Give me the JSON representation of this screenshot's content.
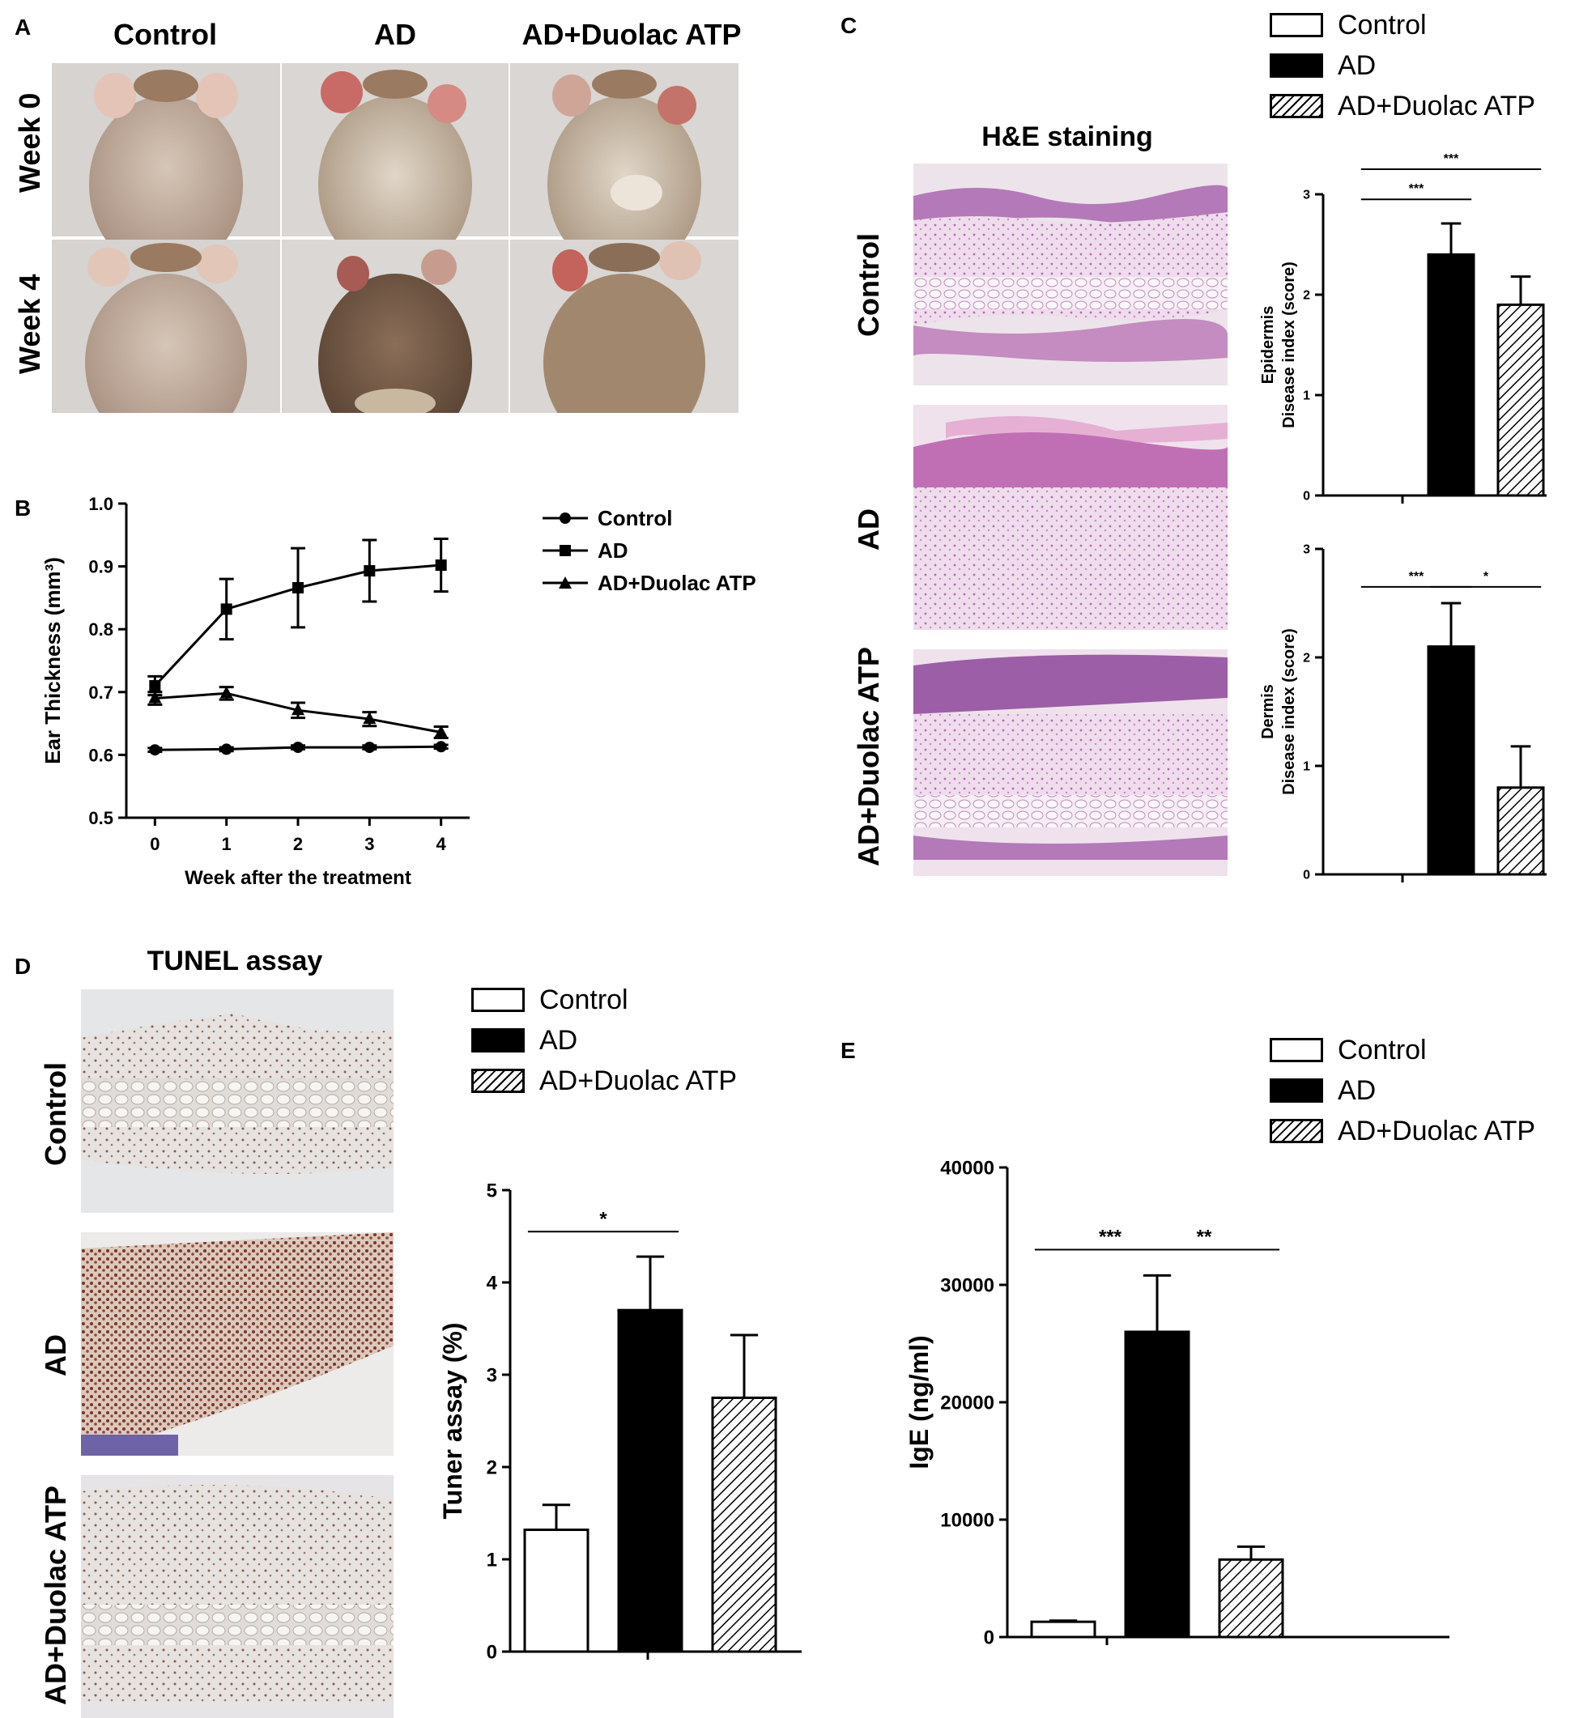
{
  "panels": {
    "A": {
      "label": "A",
      "columns": [
        "Control",
        "AD",
        "AD+Duolac ATP"
      ],
      "rows": [
        "Week 0",
        "Week 4"
      ]
    },
    "B": {
      "label": "B",
      "legend": [
        "Control",
        "AD",
        "AD+Duolac ATP"
      ]
    },
    "C": {
      "label": "C",
      "title": "H&E staining",
      "rows": [
        "Control",
        "AD",
        "AD+Duolac ATP"
      ],
      "legend": [
        "Control",
        "AD",
        "AD+Duolac ATP"
      ]
    },
    "D": {
      "label": "D",
      "title": "TUNEL assay",
      "rows": [
        "Control",
        "AD",
        "AD+Duolac ATP"
      ],
      "legend": [
        "Control",
        "AD",
        "AD+Duolac ATP"
      ]
    },
    "E": {
      "label": "E",
      "legend": [
        "Control",
        "AD",
        "AD+Duolac ATP"
      ]
    }
  },
  "chart_data": [
    {
      "id": "B",
      "type": "line",
      "xlabel": "Week after the treatment",
      "ylabel": "Ear Thickness (mm³)",
      "x": [
        0,
        1,
        2,
        3,
        4
      ],
      "xlim": [
        -0.4,
        4.4
      ],
      "ylim": [
        0.5,
        1.0
      ],
      "yticks": [
        "0.5",
        "0.6",
        "0.7",
        "0.8",
        "0.9",
        "1.0"
      ],
      "xticks": [
        "0",
        "1",
        "2",
        "3",
        "4"
      ],
      "series": [
        {
          "name": "Control",
          "marker": "circle",
          "values": [
            0.608,
            0.609,
            0.612,
            0.612,
            0.613
          ],
          "err": [
            0.003,
            0.003,
            0.003,
            0.003,
            0.003
          ]
        },
        {
          "name": "AD",
          "marker": "square",
          "values": [
            0.71,
            0.832,
            0.866,
            0.893,
            0.902
          ],
          "err": [
            0.015,
            0.048,
            0.063,
            0.049,
            0.042
          ]
        },
        {
          "name": "AD+Duolac ATP",
          "marker": "triangle",
          "values": [
            0.69,
            0.698,
            0.671,
            0.657,
            0.636
          ],
          "err": [
            0.01,
            0.01,
            0.012,
            0.011,
            0.009
          ]
        }
      ]
    },
    {
      "id": "C1",
      "type": "bar",
      "ylabel_lines": [
        "Epidermis",
        "Disease index (score)"
      ],
      "categories": [
        "Control",
        "AD",
        "AD+Duolac ATP"
      ],
      "values": [
        0,
        2.4,
        1.9
      ],
      "err": [
        0,
        0.31,
        0.28
      ],
      "ylim": [
        0,
        3
      ],
      "yticks": [
        "0",
        "1",
        "2",
        "3"
      ],
      "significance": [
        {
          "from": 0,
          "to": 1,
          "label": "***",
          "level": 2.95
        },
        {
          "from": 0,
          "to": 2,
          "label": "***",
          "level": 3.25
        }
      ]
    },
    {
      "id": "C2",
      "type": "bar",
      "ylabel_lines": [
        "Dermis",
        "Disease index (score)"
      ],
      "categories": [
        "Control",
        "AD",
        "AD+Duolac ATP"
      ],
      "values": [
        0,
        2.1,
        0.8
      ],
      "err": [
        0,
        0.4,
        0.38
      ],
      "ylim": [
        0,
        3
      ],
      "yticks": [
        "0",
        "1",
        "2",
        "3"
      ],
      "significance": [
        {
          "from": 0,
          "to": 1,
          "label": "***",
          "level": 2.65
        },
        {
          "from": 1,
          "to": 2,
          "label": "*",
          "level": 2.65
        }
      ]
    },
    {
      "id": "D",
      "type": "bar",
      "ylabel": "Tuner assay (%)",
      "categories": [
        "Control",
        "AD",
        "AD+Duolac ATP"
      ],
      "values": [
        1.32,
        3.7,
        2.75
      ],
      "err": [
        0.27,
        0.58,
        0.68
      ],
      "ylim": [
        0,
        5
      ],
      "yticks": [
        "0",
        "1",
        "2",
        "3",
        "4",
        "5"
      ],
      "significance": [
        {
          "from": 0,
          "to": 1,
          "label": "*",
          "level": 4.55
        }
      ]
    },
    {
      "id": "E",
      "type": "bar",
      "ylabel": "IgE (ng/ml)",
      "categories": [
        "Control",
        "AD",
        "AD+Duolac ATP"
      ],
      "values": [
        1300,
        26000,
        6600
      ],
      "err": [
        100,
        4800,
        1100
      ],
      "ylim": [
        0,
        40000
      ],
      "yticks": [
        "0",
        "10000",
        "20000",
        "30000",
        "40000"
      ],
      "significance": [
        {
          "from": 0,
          "to": 1,
          "label": "***",
          "level": 33000
        },
        {
          "from": 1,
          "to": 2,
          "label": "**",
          "level": 33000
        }
      ]
    }
  ],
  "colors": {
    "mouse_bg": "#d9d6d3",
    "mouse_fur_light": "#c9b8a8",
    "mouse_fur_dark": "#7a5e48",
    "he_bg": "#f1e6ef",
    "he_pink": "#d98fc6",
    "he_purple": "#a566a9",
    "tunel_bg": "#eaecef",
    "tunel_brown": "#8a4a3a",
    "tunel_blue": "#6f63a8"
  }
}
